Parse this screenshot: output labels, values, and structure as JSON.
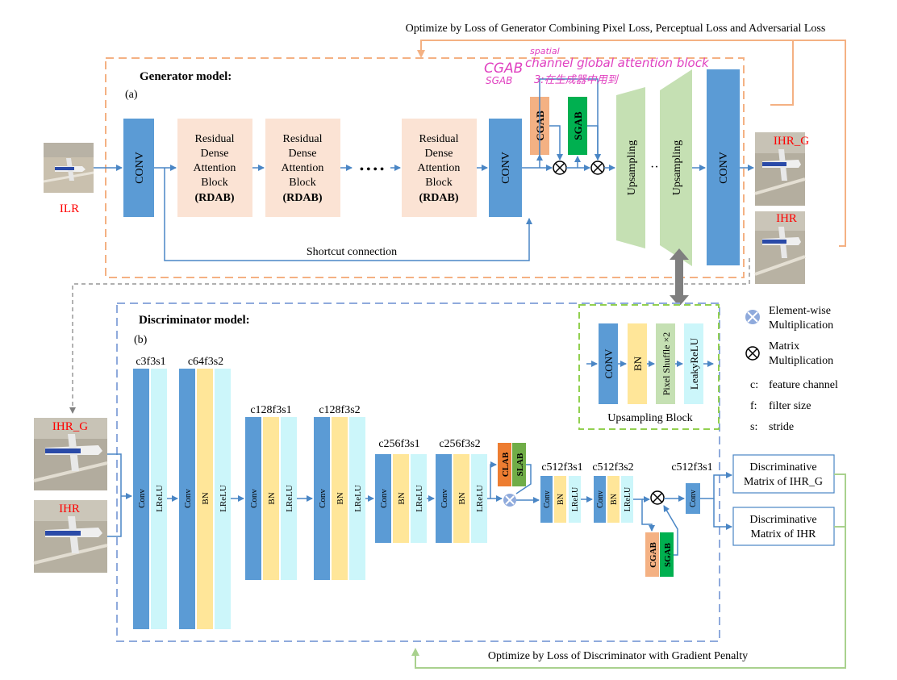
{
  "top_note": "Optimize by Loss of Generator Combining Pixel Loss, Perceptual Loss and Adversarial Loss",
  "bottom_note": "Optimize by Loss of Discriminator with Gradient Penalty",
  "generator": {
    "title": "Generator model:",
    "sub": "(a)",
    "input_label": "ILR",
    "conv": "CONV",
    "rdab_lines": [
      "Residual",
      "Dense",
      "Attention",
      "Block"
    ],
    "rdab_bold": "(RDAB)",
    "dots": "• • • •",
    "cgab": "CGAB",
    "sgab": "SGAB",
    "upsampling": "Upsampling",
    "ellipsis": "···",
    "shortcut": "Shortcut connection",
    "out1": "IHR_G",
    "out2": "IHR"
  },
  "handwritten": {
    "l1a": "CGAB",
    "l1b": "spatial",
    "l2a": "SGAB",
    "l2b": "channel  global attention block",
    "l3": "3:在生成器中用到"
  },
  "discriminator": {
    "title": "Discriminator model:",
    "sub": "(b)",
    "in1": "IHR_G",
    "in2": "IHR",
    "blocks": [
      "c3f3s1",
      "c64f3s2",
      "c128f3s1",
      "c128f3s2",
      "c256f3s1",
      "c256f3s2",
      "c512f3s1",
      "c512f3s2",
      "c512f3s1"
    ],
    "conv": "Conv",
    "bn": "BN",
    "lrelu": "LReLU",
    "clab": "CLAB",
    "slab": "SLAB",
    "cgab": "CGAB",
    "sgab": "SGAB",
    "out1_l1": "Discriminative",
    "out1_l2": "Matrix of IHR_G",
    "out2_l1": "Discriminative",
    "out2_l2": "Matrix of IHR"
  },
  "upsampling_block": {
    "title": "Upsampling Block",
    "conv": "CONV",
    "bn": "BN",
    "pixel": "Pixel Shuffle ×2",
    "leaky": "LeakyReLU"
  },
  "legend": {
    "ew_l1": "Element-wise",
    "ew_l2": "Multiplication",
    "mm_l1": "Matrix",
    "mm_l2": "Multiplication",
    "c_key": "c:",
    "c_val": "feature channel",
    "f_key": "f:",
    "f_val": "filter size",
    "s_key": "s:",
    "s_val": "stride"
  },
  "colors": {
    "conv_blue": "#5b9bd5",
    "cyan": "#ccf6fa",
    "bn_yellow": "#ffe699",
    "rdab_peach": "#fbe3d4",
    "green_trap": "#c5e0b3",
    "gen_border": "#f4b183",
    "disc_border": "#8faadc",
    "up_border": "#92d050",
    "cgab": "#f4b183",
    "sgab": "#00b050",
    "clab": "#ed7d31",
    "slab": "#70ad47",
    "red_label": "#ff0000",
    "magenta": "#e040c0"
  }
}
